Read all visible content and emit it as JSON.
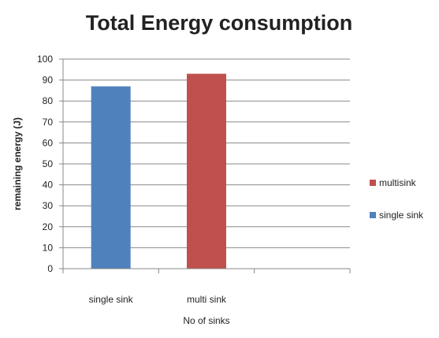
{
  "chart_data": {
    "type": "bar",
    "title": "Total Energy consumption",
    "xlabel": "No of sinks",
    "ylabel": "remaining energy (J)",
    "ylim": [
      0,
      100
    ],
    "yticks": [
      0,
      10,
      20,
      30,
      40,
      50,
      60,
      70,
      80,
      90,
      100
    ],
    "grid": true,
    "legend_position": "right",
    "categories": [
      "single sink",
      "multi sink"
    ],
    "series": [
      {
        "name": "single sink",
        "color": "#4f81bd",
        "values": [
          87,
          null
        ]
      },
      {
        "name": "multisink",
        "color": "#c0504d",
        "values": [
          null,
          93
        ]
      }
    ],
    "legend": [
      {
        "name": "multisink",
        "color": "#c0504d"
      },
      {
        "name": "single sink",
        "color": "#4f81bd"
      }
    ]
  }
}
